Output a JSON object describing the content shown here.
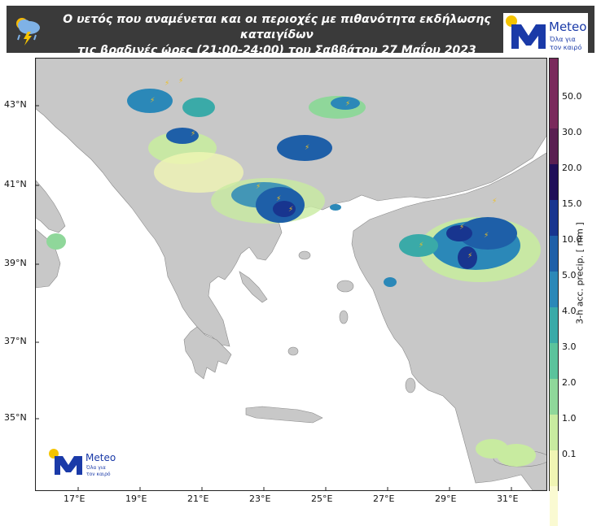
{
  "header": {
    "title_line1": "Ο υετός που αναμένεται και οι περιοχές με πιθανότητα εκδήλωσης καταιγίδων",
    "title_line2": "τις βραδινές ώρες (21:00-24:00) του Σαββάτου 27 Μαΐου 2023",
    "icon": "rain-lightning-cloud-icon"
  },
  "logo": {
    "name": "Meteo",
    "tagline_line1": "Όλα για",
    "tagline_line2": "τον καιρό",
    "icon": "meteo-m-logo-icon"
  },
  "map": {
    "lon_range": [
      16,
      32.5
    ],
    "lat_range": [
      33.2,
      44.2
    ],
    "lon_ticks": [
      "17°E",
      "19°E",
      "21°E",
      "23°E",
      "25°E",
      "27°E",
      "29°E",
      "31°E"
    ],
    "lat_ticks": [
      "43°N",
      "41°N",
      "39°N",
      "37°N",
      "35°N"
    ],
    "land_color": "#c8c8c8",
    "sea_color": "#ffffff"
  },
  "colorbar": {
    "title": "3-h acc. precip. [ mm ]",
    "labels": [
      "0.1",
      "1.0",
      "2.0",
      "3.0",
      "4.0",
      "5.0",
      "10.0",
      "15.0",
      "20.0",
      "30.0",
      "50.0"
    ],
    "colors": [
      "#fafad2",
      "#f0f5b4",
      "#c8eba0",
      "#8fd79a",
      "#5bc39c",
      "#3aaaa8",
      "#2b88b8",
      "#1e5fa8",
      "#18358f",
      "#1f0e58",
      "#5a1f52",
      "#7a2a5c"
    ]
  },
  "legend_colors": {
    "lightning": "#f0c020"
  }
}
